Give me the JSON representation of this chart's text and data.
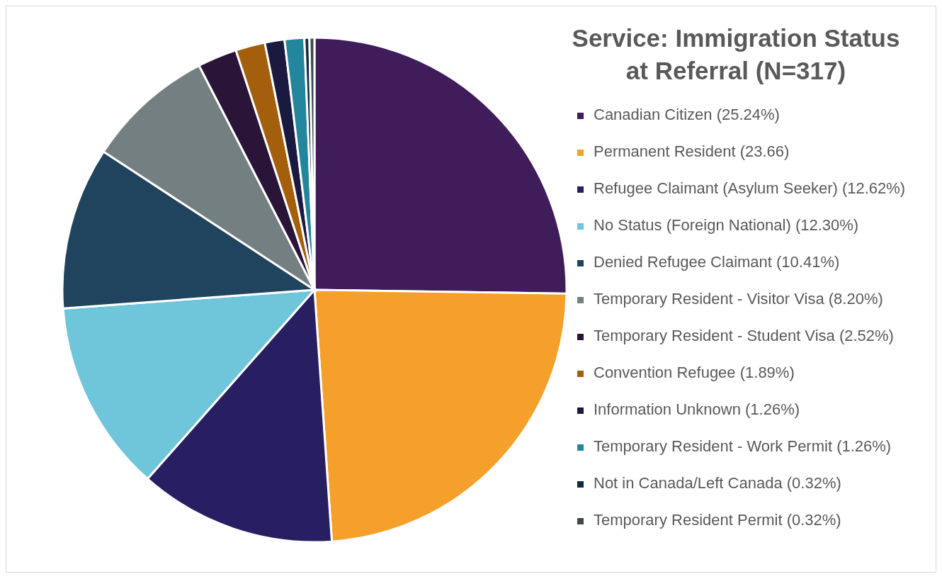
{
  "chart_data": {
    "type": "pie",
    "title": "Service: Immigration Status at Referral (N=317)",
    "categories": [
      "Canadian Citizen (25.24%)",
      "Permanent Resident (23.66)",
      "Refugee Claimant (Asylum Seeker) (12.62%)",
      "No Status (Foreign National) (12.30%)",
      "Denied Refugee Claimant (10.41%)",
      "Temporary Resident - Visitor Visa (8.20%)",
      "Temporary Resident - Student Visa (2.52%)",
      "Convention Refugee (1.89%)",
      "Information Unknown (1.26%)",
      "Temporary Resident - Work Permit (1.26%)",
      "Not in Canada/Left Canada (0.32%)",
      "Temporary Resident Permit (0.32%)"
    ],
    "values": [
      25.24,
      23.66,
      12.62,
      12.3,
      10.41,
      8.2,
      2.52,
      1.89,
      1.26,
      1.26,
      0.32,
      0.32
    ],
    "colors": [
      "#3f1d5a",
      "#f5a02a",
      "#271f62",
      "#6fc5da",
      "#20435e",
      "#737f80",
      "#2a1538",
      "#a35f0b",
      "#1a1a40",
      "#24869c",
      "#132a40",
      "#404a4e"
    ],
    "legend": "right"
  }
}
